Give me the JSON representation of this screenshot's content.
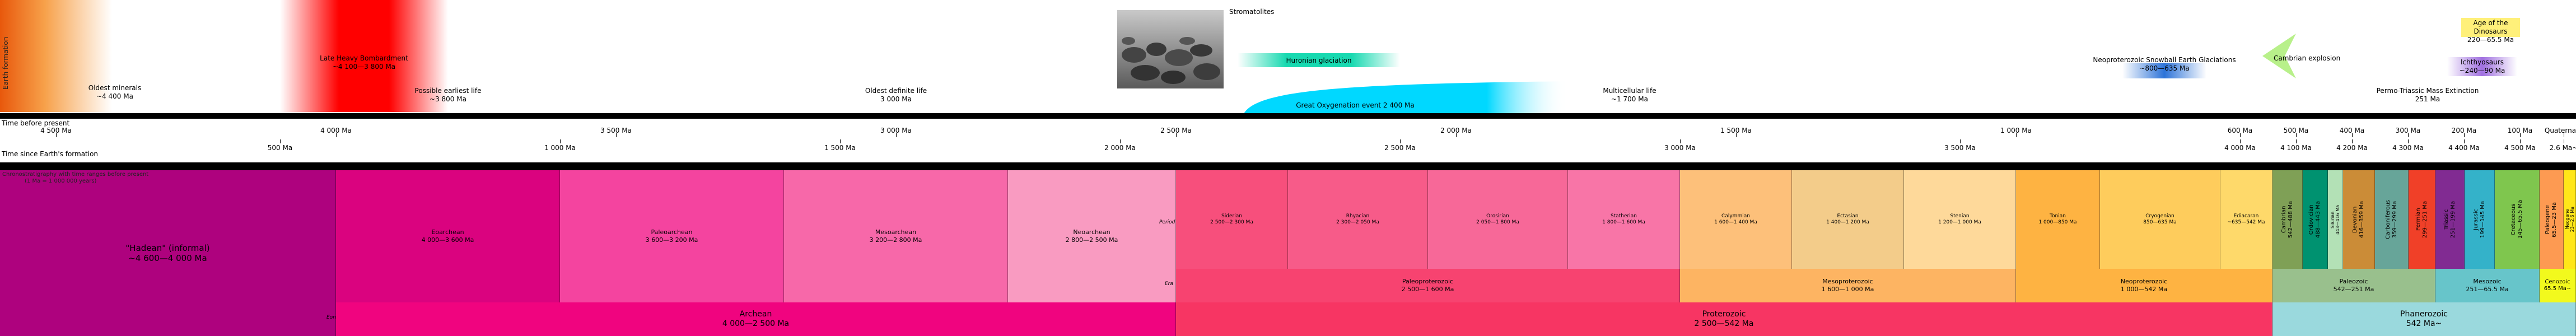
{
  "left_label": "Earth formation",
  "top_events": [
    {
      "name": "Oldest minerals",
      "range": "~4 400 Ma"
    },
    {
      "name": "Late Heavy Bombardment",
      "range": "~4 100—3 800 Ma"
    },
    {
      "name": "Possible earliest life",
      "range": "~3 800 Ma"
    },
    {
      "name": "Oldest definite life",
      "range": "3 000 Ma"
    },
    {
      "name": "Stromatolites",
      "range": ""
    },
    {
      "name": "Huronian glaciation",
      "range": ""
    },
    {
      "name": "Great Oxygenation event",
      "range": "2 400 Ma"
    },
    {
      "name": "Multicellular life",
      "range": "~1 700 Ma"
    },
    {
      "name": "Neoproterozoic Snowball Earth Glaciations",
      "range": "~800—635 Ma"
    },
    {
      "name": "Cambrian explosion",
      "range": ""
    },
    {
      "name": "Age of the Dinosaurs",
      "range": "220—65.5 Ma"
    },
    {
      "name": "Ichthyosaurs",
      "range": "~240—90 Ma"
    },
    {
      "name": "Permo-Triassic Mass Extinction",
      "range": "251 Ma"
    }
  ],
  "axis_before": {
    "label": "Time before present",
    "ticks": [
      "4 500 Ma",
      "4 000 Ma",
      "3 500 Ma",
      "3 000 Ma",
      "2 500 Ma",
      "2 000 Ma",
      "1 500 Ma",
      "1 000 Ma",
      "600 Ma",
      "500 Ma",
      "400 Ma",
      "300 Ma",
      "200 Ma",
      "100 Ma",
      "Quaternary"
    ]
  },
  "axis_since": {
    "label": "Time since Earth's formation",
    "ticks": [
      "500 Ma",
      "1 000 Ma",
      "1 500 Ma",
      "2 000 Ma",
      "2 500 Ma",
      "3 000 Ma",
      "3 500 Ma",
      "4 000 Ma",
      "4 100 Ma",
      "4 200 Ma",
      "4 300 Ma",
      "4 400 Ma",
      "4 500 Ma",
      "2.6 Ma~"
    ]
  },
  "chrono_header": {
    "title": "Chronostratigraphy with time ranges before present",
    "scale": "(1 Ma = 1 000 000 years)"
  },
  "row_labels": {
    "period": "Period",
    "era": "Era",
    "eon": "Eon"
  },
  "hadean": {
    "name": "\"Hadean\" (informal)",
    "range": "~4 600—4 000 Ma"
  },
  "archean_eras": [
    {
      "name": "Eoarchean",
      "range": "4 000—3 600 Ma"
    },
    {
      "name": "Paleoarchean",
      "range": "3 600—3 200 Ma"
    },
    {
      "name": "Mesoarchean",
      "range": "3 200—2 800 Ma"
    },
    {
      "name": "Neoarchean",
      "range": "2 800—2 500 Ma"
    }
  ],
  "periods": [
    {
      "name": "Siderian",
      "range": "2 500—2 300 Ma"
    },
    {
      "name": "Rhyacian",
      "range": "2 300—2 050 Ma"
    },
    {
      "name": "Orosirian",
      "range": "2 050—1 800 Ma"
    },
    {
      "name": "Statherian",
      "range": "1 800—1 600 Ma"
    },
    {
      "name": "Calymmian",
      "range": "1 600—1 400 Ma"
    },
    {
      "name": "Ectasian",
      "range": "1 400—1 200 Ma"
    },
    {
      "name": "Stenian",
      "range": "1 200—1 000 Ma"
    },
    {
      "name": "Tonian",
      "range": "1 000—850 Ma"
    },
    {
      "name": "Cryogenian",
      "range": "850—635 Ma"
    },
    {
      "name": "Ediacaran",
      "range": "~635—542 Ma"
    }
  ],
  "phanerozoic_periods": [
    {
      "name": "Cambrian",
      "range": "542—488 Ma"
    },
    {
      "name": "Ordovician",
      "range": "488—443 Ma"
    },
    {
      "name": "Silurian",
      "range": "443—416 Ma"
    },
    {
      "name": "Devonian",
      "range": "416—359 Ma"
    },
    {
      "name": "Carboniferous",
      "range": "359—299 Ma"
    },
    {
      "name": "Permian",
      "range": "299—251 Ma"
    },
    {
      "name": "Triassic",
      "range": "251—199 Ma"
    },
    {
      "name": "Jurassic",
      "range": "199—145 Ma"
    },
    {
      "name": "Cretaceous",
      "range": "145—65.5 Ma"
    },
    {
      "name": "Paleogene",
      "range": "65.5—23 Ma"
    },
    {
      "name": "Neogene",
      "range": "23—2.6 Ma"
    }
  ],
  "proterozoic_eras": [
    {
      "name": "Paleoproterozoic",
      "range": "2 500—1 600 Ma"
    },
    {
      "name": "Mesoproterozoic",
      "range": "1 600—1 000 Ma"
    },
    {
      "name": "Neoproterozoic",
      "range": "1 000—542 Ma"
    }
  ],
  "phanerozoic_eras": [
    {
      "name": "Paleozoic",
      "range": "542—251 Ma"
    },
    {
      "name": "Mesozoic",
      "range": "251—65.5 Ma"
    },
    {
      "name": "Cenozoic",
      "range": "65.5 Ma~"
    }
  ],
  "eons": [
    {
      "name": "Archean",
      "range": "4 000—2 500 Ma"
    },
    {
      "name": "Proterozoic",
      "range": "2 500—542 Ma"
    },
    {
      "name": "Phanerozoic",
      "range": "542 Ma~"
    }
  ]
}
